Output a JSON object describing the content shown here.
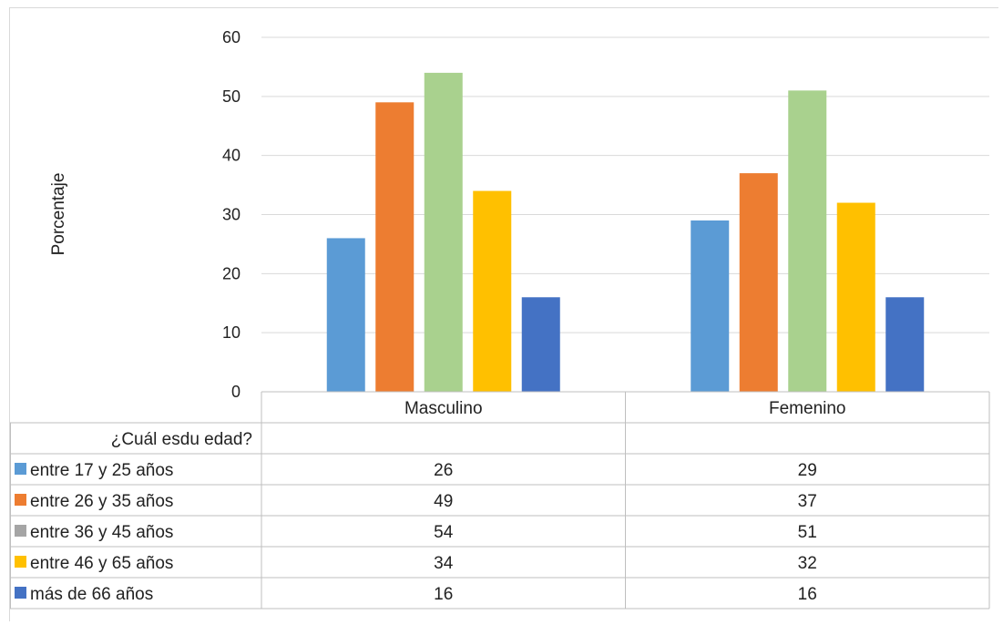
{
  "chart_data": {
    "type": "bar",
    "title": "",
    "xlabel": "",
    "ylabel": "Porcentaje",
    "ylim": [
      0,
      60
    ],
    "yticks": [
      0,
      10,
      20,
      30,
      40,
      50,
      60
    ],
    "grid": true,
    "categories": [
      "Masculino",
      "Femenino"
    ],
    "table_header": "¿Cuál esdu edad?",
    "series": [
      {
        "name": "entre 17 y 25 años",
        "color": "#5b9bd5",
        "legend_color": "#5b9bd5",
        "values": [
          26,
          29
        ]
      },
      {
        "name": "entre 26 y 35 años",
        "color": "#ed7d31",
        "legend_color": "#ed7d31",
        "values": [
          49,
          37
        ]
      },
      {
        "name": "entre 36 y 45 años",
        "color": "#a9d18e",
        "legend_color": "#a5a5a5",
        "values": [
          54,
          51
        ]
      },
      {
        "name": "entre 46 y 65 años",
        "color": "#ffc000",
        "legend_color": "#ffc000",
        "values": [
          34,
          32
        ]
      },
      {
        "name": "más de 66 años",
        "color": "#4472c4",
        "legend_color": "#4472c4",
        "values": [
          16,
          16
        ]
      }
    ]
  }
}
